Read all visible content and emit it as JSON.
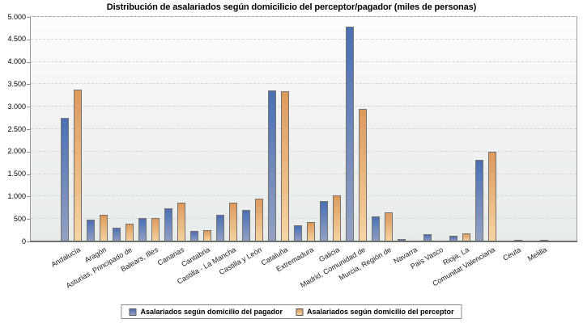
{
  "chart_data": {
    "type": "bar",
    "title": "Distribución de asalariados según domicilicio del perceptor/pagador (miles de personas)",
    "xlabel": "",
    "ylabel": "",
    "unit": "miles de personas",
    "ylim": [
      0,
      5000
    ],
    "ytick_step": 500,
    "ytick_labels": [
      "0",
      "500",
      "1.000",
      "1.500",
      "2.000",
      "2.500",
      "3.000",
      "3.500",
      "4.000",
      "4.500",
      "5.000"
    ],
    "grid": "horizontal-dashed",
    "legend_position": "bottom-center",
    "categories": [
      "Andalucía",
      "Aragón",
      "Asturias, Principado de",
      "Balears, Illes",
      "Canarias",
      "Cantabria",
      "Castilla - La Mancha",
      "Castilla y León",
      "Cataluña",
      "Extremadura",
      "Galicia",
      "Madrid, Comunidad de",
      "Murcia, Región de",
      "Navarra",
      "País Vasco",
      "Rioja, La",
      "Comunitat Valenciana",
      "Ceuta",
      "Melilla"
    ],
    "series": [
      {
        "name": "Asalariados según domicilio del pagador",
        "color_top": "#4a6fb4",
        "color_bottom": "#93a1c3",
        "values": [
          2760,
          490,
          300,
          520,
          740,
          230,
          600,
          700,
          3370,
          360,
          900,
          4780,
          550,
          50,
          155,
          130,
          1810,
          25,
          25
        ]
      },
      {
        "name": "Asalariados según domicilio del perceptor",
        "color_top": "#db9a5c",
        "color_bottom": "#f7d4a3",
        "values": [
          3380,
          590,
          390,
          525,
          860,
          245,
          855,
          960,
          3350,
          435,
          1030,
          2950,
          640,
          0,
          0,
          180,
          2000,
          40,
          45
        ]
      }
    ]
  },
  "colors": {
    "plot_bg_top": "#fcfdfd",
    "plot_bg_bottom": "#e7ebea",
    "gridline": "#d2d6d5",
    "frame": "#9a9a9a",
    "axis": "#6f6f6f",
    "bar_border": "#77726c",
    "text": "#000000",
    "background": "#ffffff"
  }
}
